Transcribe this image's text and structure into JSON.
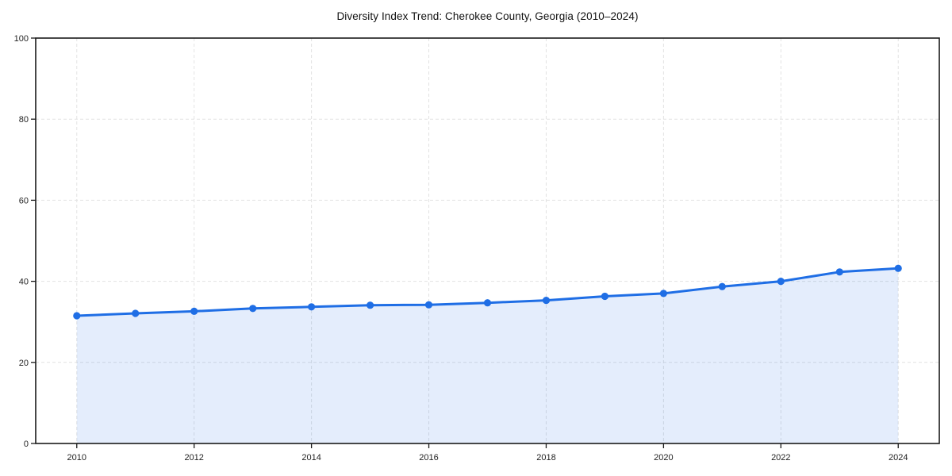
{
  "page": {
    "background_color": "#ffffff"
  },
  "chart_data": {
    "type": "line",
    "subtype": "area-filled-line-with-markers",
    "title": "Diversity Index Trend: Cherokee County, Georgia (2010–2024)",
    "xlabel": "",
    "ylabel": "",
    "x": [
      2010,
      2011,
      2012,
      2013,
      2014,
      2015,
      2016,
      2017,
      2018,
      2019,
      2020,
      2021,
      2022,
      2023,
      2024
    ],
    "series": [
      {
        "name": "Diversity Index",
        "values": [
          31.5,
          32.1,
          32.6,
          33.3,
          33.7,
          34.1,
          34.2,
          34.7,
          35.3,
          36.3,
          37.0,
          38.7,
          40.0,
          42.3,
          43.2
        ]
      }
    ],
    "xlim": [
      2009.3,
      2024.7
    ],
    "ylim": [
      0,
      100
    ],
    "xticks": [
      "2010",
      "2012",
      "2014",
      "2016",
      "2018",
      "2020",
      "2022",
      "2024"
    ],
    "yticks": [
      "0",
      "20",
      "40",
      "60",
      "80",
      "100"
    ],
    "grid": true,
    "grid_style": "dashed",
    "legend": false,
    "colors": {
      "line": "#1f6ee5",
      "marker": "#1f6ee5",
      "fill": "rgba(31,110,229,0.12)",
      "grid": "#e2e2e2",
      "spine": "#1a1a1a",
      "tick": "#1a1a1a",
      "tick_label": "#222222",
      "title": "#111111"
    }
  }
}
